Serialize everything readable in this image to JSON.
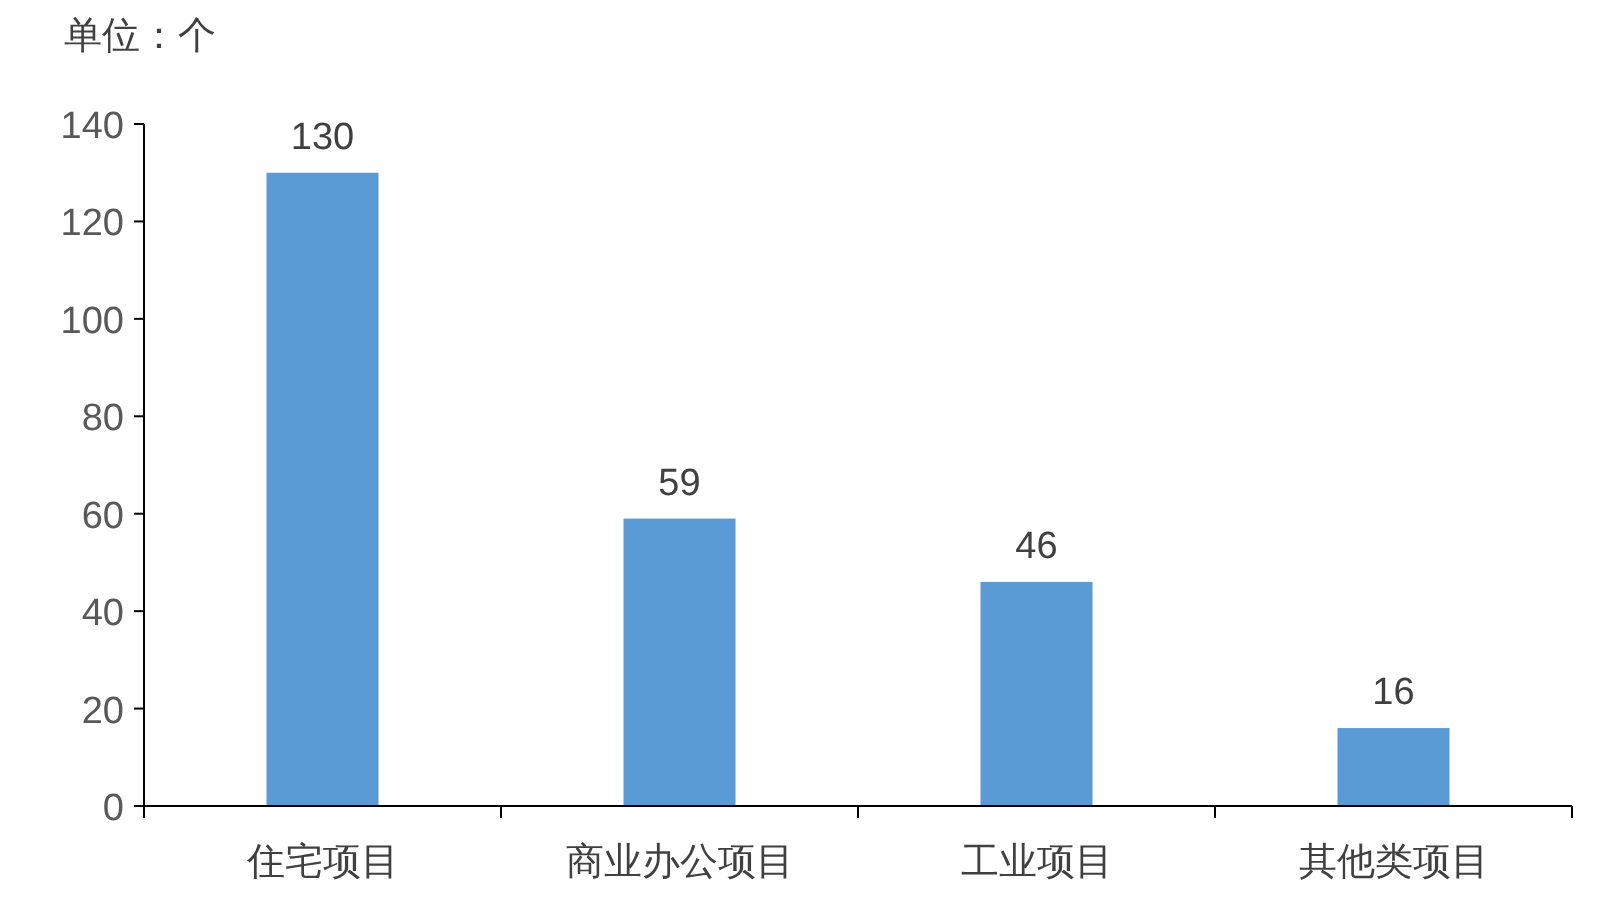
{
  "chart_data": {
    "type": "bar",
    "ylabel": "单位：个",
    "categories": [
      "住宅项目",
      "商业办公项目",
      "工业项目",
      "其他类项目"
    ],
    "values": [
      130,
      59,
      46,
      16
    ],
    "color": "#5b9bd5",
    "ylim": [
      0,
      140
    ],
    "yticks": [
      0,
      20,
      40,
      60,
      80,
      100,
      120,
      140
    ],
    "data_labels": true
  }
}
